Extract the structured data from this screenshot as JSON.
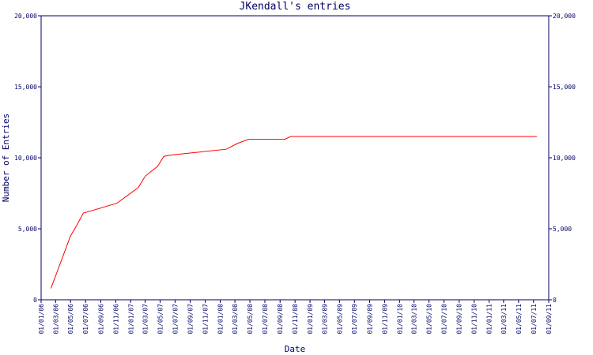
{
  "chart_data": {
    "type": "line",
    "title": "JKendall's entries",
    "x_label": "Date",
    "y_label": "Number of Entries",
    "x": [
      "2006-02-10",
      "2006-05-01",
      "2006-05-28",
      "2006-06-22",
      "2006-11-06",
      "2007-02-01",
      "2007-03-01",
      "2007-04-21",
      "2007-05-16",
      "2007-06-18",
      "2008-01-25",
      "2008-03-10",
      "2008-04-24",
      "2008-09-20",
      "2008-10-15",
      "2011-07-15"
    ],
    "series": [
      {
        "name": "JKendall",
        "color": "#ff0000",
        "values": [
          800,
          4500,
          5300,
          6100,
          6800,
          7900,
          8700,
          9400,
          10100,
          10200,
          10600,
          11000,
          11300,
          11300,
          11500,
          11500
        ]
      }
    ],
    "xlim": [
      "2006-01-01",
      "2011-09-01"
    ],
    "xticks": [
      {
        "value": "2006-01-01",
        "label": "01/01/06"
      },
      {
        "value": "2006-03-01",
        "label": "01/03/06"
      },
      {
        "value": "2006-05-01",
        "label": "01/05/06"
      },
      {
        "value": "2006-07-01",
        "label": "01/07/06"
      },
      {
        "value": "2006-09-01",
        "label": "01/09/06"
      },
      {
        "value": "2006-11-01",
        "label": "01/11/06"
      },
      {
        "value": "2007-01-01",
        "label": "01/01/07"
      },
      {
        "value": "2007-03-01",
        "label": "01/03/07"
      },
      {
        "value": "2007-05-01",
        "label": "01/05/07"
      },
      {
        "value": "2007-07-01",
        "label": "01/07/07"
      },
      {
        "value": "2007-09-01",
        "label": "01/09/07"
      },
      {
        "value": "2007-11-01",
        "label": "01/11/07"
      },
      {
        "value": "2008-01-01",
        "label": "01/01/08"
      },
      {
        "value": "2008-03-01",
        "label": "01/03/08"
      },
      {
        "value": "2008-05-01",
        "label": "01/05/08"
      },
      {
        "value": "2008-07-01",
        "label": "01/07/08"
      },
      {
        "value": "2008-09-01",
        "label": "01/09/08"
      },
      {
        "value": "2008-11-01",
        "label": "01/11/08"
      },
      {
        "value": "2009-01-01",
        "label": "01/01/09"
      },
      {
        "value": "2009-03-01",
        "label": "01/03/09"
      },
      {
        "value": "2009-05-01",
        "label": "01/05/09"
      },
      {
        "value": "2009-07-01",
        "label": "01/07/09"
      },
      {
        "value": "2009-09-01",
        "label": "01/09/09"
      },
      {
        "value": "2009-11-01",
        "label": "01/11/09"
      },
      {
        "value": "2010-01-01",
        "label": "01/01/10"
      },
      {
        "value": "2010-03-01",
        "label": "01/03/10"
      },
      {
        "value": "2010-05-01",
        "label": "01/05/10"
      },
      {
        "value": "2010-07-01",
        "label": "01/07/10"
      },
      {
        "value": "2010-09-01",
        "label": "01/09/10"
      },
      {
        "value": "2010-11-01",
        "label": "01/11/10"
      },
      {
        "value": "2011-01-01",
        "label": "01/01/11"
      },
      {
        "value": "2011-03-01",
        "label": "01/03/11"
      },
      {
        "value": "2011-05-01",
        "label": "01/05/11"
      },
      {
        "value": "2011-07-01",
        "label": "01/07/11"
      },
      {
        "value": "2011-09-01",
        "label": "01/09/11"
      }
    ],
    "ylim": [
      0,
      20000
    ],
    "yticks": [
      0,
      {
        "value": 5000,
        "label": "5,000"
      },
      {
        "value": 10000,
        "label": "10,000"
      },
      {
        "value": 15000,
        "label": "15,000"
      },
      {
        "value": 20000,
        "label": "20,000"
      }
    ],
    "grid": false,
    "axis_color": "#000066"
  }
}
